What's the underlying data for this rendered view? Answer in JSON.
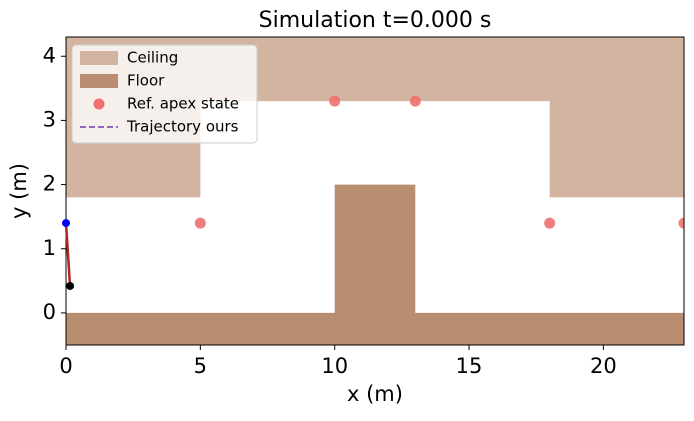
{
  "chart_data": {
    "type": "scene",
    "title": "Simulation t=0.000 s",
    "x_label": "x (m)",
    "y_label": "y (m)",
    "xlim": [
      0,
      23
    ],
    "ylim": [
      -0.5,
      4.3
    ],
    "xticks": [
      0,
      5,
      10,
      15,
      20
    ],
    "yticks": [
      0,
      1,
      2,
      3,
      4
    ],
    "legend": "upper left",
    "series": [
      {
        "name": "Ceiling",
        "kind": "fill",
        "color": "#d2b4a0",
        "x": [
          0,
          0,
          5,
          5,
          18,
          18,
          23,
          23
        ],
        "values": [
          4.3,
          1.8,
          1.8,
          3.3,
          3.3,
          1.8,
          1.8,
          4.3
        ]
      },
      {
        "name": "Floor",
        "kind": "fill",
        "color": "#b98d6f",
        "x": [
          0,
          0,
          10,
          10,
          13,
          13,
          23,
          23
        ],
        "values": [
          -0.5,
          0,
          0,
          2,
          2,
          0,
          0,
          -0.5
        ]
      },
      {
        "name": "Ref. apex state",
        "kind": "scatter",
        "color": "#f07070",
        "x": [
          5,
          10,
          13,
          18,
          23
        ],
        "values": [
          1.4,
          3.3,
          3.3,
          1.4,
          1.4
        ]
      },
      {
        "name": "Trajectory ours",
        "kind": "dashed-line",
        "color": "#9467bd",
        "x": [],
        "values": []
      }
    ],
    "body": {
      "x": [
        0,
        0.15
      ],
      "values": [
        1.4,
        0.42
      ],
      "link_color": "#b22222",
      "colors": [
        "#0000ff",
        "#000000"
      ]
    }
  }
}
